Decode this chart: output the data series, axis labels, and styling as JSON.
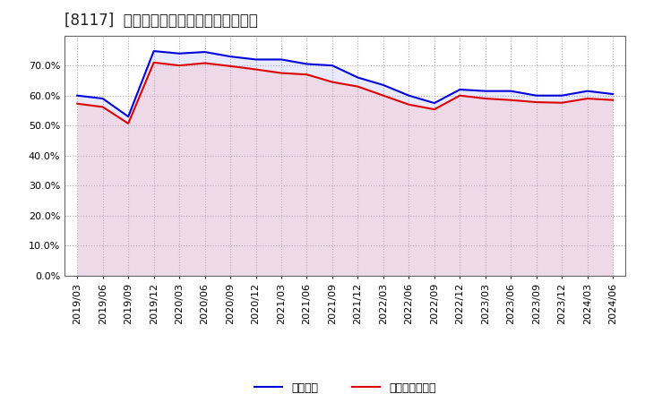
{
  "title": "[8117]  固定比率、固定長期適合率の推移",
  "background_color": "#ffffff",
  "plot_bg_color": "#ffffff",
  "grid_color": "#aaaaaa",
  "ylim": [
    0.0,
    0.8
  ],
  "yticks": [
    0.0,
    0.1,
    0.2,
    0.3,
    0.4,
    0.5,
    0.6,
    0.7
  ],
  "x_labels": [
    "2019/03",
    "2019/06",
    "2019/09",
    "2019/12",
    "2020/03",
    "2020/06",
    "2020/09",
    "2020/12",
    "2021/03",
    "2021/06",
    "2021/09",
    "2021/12",
    "2022/03",
    "2022/06",
    "2022/09",
    "2022/12",
    "2023/03",
    "2023/06",
    "2023/09",
    "2023/12",
    "2024/03",
    "2024/06"
  ],
  "fixed_ratio": [
    0.6,
    0.59,
    0.53,
    0.748,
    0.74,
    0.745,
    0.73,
    0.72,
    0.72,
    0.705,
    0.7,
    0.66,
    0.635,
    0.6,
    0.575,
    0.62,
    0.615,
    0.615,
    0.6,
    0.6,
    0.615,
    0.605
  ],
  "fixed_long_ratio": [
    0.573,
    0.562,
    0.507,
    0.71,
    0.7,
    0.708,
    0.698,
    0.687,
    0.675,
    0.67,
    0.645,
    0.63,
    0.6,
    0.57,
    0.554,
    0.6,
    0.59,
    0.585,
    0.578,
    0.576,
    0.59,
    0.585
  ],
  "line1_color": "#0000dd",
  "line2_color": "#dd0000",
  "fill1_color": "#aaaaff",
  "fill2_color": "#ffaaaa",
  "line1_label": "固定比率",
  "line2_label": "固定長期適合率",
  "title_fontsize": 12,
  "legend_fontsize": 9,
  "tick_fontsize": 8,
  "linewidth": 1.5
}
